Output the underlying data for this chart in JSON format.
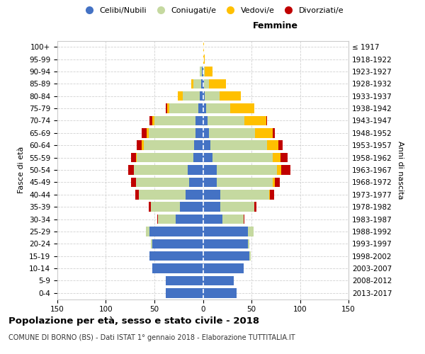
{
  "age_groups": [
    "0-4",
    "5-9",
    "10-14",
    "15-19",
    "20-24",
    "25-29",
    "30-34",
    "35-39",
    "40-44",
    "45-49",
    "50-54",
    "55-59",
    "60-64",
    "65-69",
    "70-74",
    "75-79",
    "80-84",
    "85-89",
    "90-94",
    "95-99",
    "100+"
  ],
  "birth_years": [
    "2013-2017",
    "2008-2012",
    "2003-2007",
    "1998-2002",
    "1993-1997",
    "1988-1992",
    "1983-1987",
    "1978-1982",
    "1973-1977",
    "1968-1972",
    "1963-1967",
    "1958-1962",
    "1953-1957",
    "1948-1952",
    "1943-1947",
    "1938-1942",
    "1933-1937",
    "1928-1932",
    "1923-1927",
    "1918-1922",
    "≤ 1917"
  ],
  "male_celibi": [
    38,
    38,
    52,
    55,
    52,
    55,
    28,
    24,
    18,
    14,
    16,
    10,
    9,
    8,
    8,
    5,
    3,
    2,
    1,
    0,
    0
  ],
  "male_coniugati": [
    0,
    0,
    0,
    0,
    2,
    4,
    18,
    30,
    48,
    55,
    55,
    58,
    52,
    48,
    42,
    30,
    18,
    8,
    2,
    0,
    0
  ],
  "male_vedovi": [
    0,
    0,
    0,
    0,
    0,
    0,
    0,
    0,
    0,
    0,
    0,
    1,
    2,
    2,
    2,
    2,
    5,
    2,
    0,
    0,
    0
  ],
  "male_divorziati": [
    0,
    0,
    0,
    0,
    0,
    0,
    1,
    2,
    4,
    5,
    6,
    5,
    5,
    5,
    3,
    1,
    0,
    0,
    0,
    0,
    0
  ],
  "female_celibi": [
    35,
    32,
    42,
    48,
    46,
    46,
    20,
    18,
    18,
    14,
    14,
    10,
    8,
    6,
    5,
    3,
    2,
    1,
    0,
    0,
    0
  ],
  "female_coniugati": [
    0,
    0,
    0,
    1,
    2,
    6,
    22,
    35,
    50,
    58,
    62,
    62,
    58,
    48,
    38,
    25,
    15,
    5,
    2,
    0,
    0
  ],
  "female_vedovi": [
    0,
    0,
    0,
    0,
    0,
    0,
    0,
    0,
    1,
    2,
    5,
    8,
    12,
    18,
    22,
    25,
    22,
    18,
    8,
    2,
    1
  ],
  "female_divorziati": [
    0,
    0,
    0,
    0,
    0,
    0,
    1,
    2,
    4,
    5,
    9,
    7,
    4,
    2,
    1,
    0,
    0,
    0,
    0,
    0,
    0
  ],
  "colors": {
    "celibi": "#4472c4",
    "coniugati": "#c5d9a0",
    "vedovi": "#ffc000",
    "divorziati": "#c00000"
  },
  "legend_labels": [
    "Celibi/Nubili",
    "Coniugati/e",
    "Vedovi/e",
    "Divorziati/e"
  ],
  "title": "Popolazione per età, sesso e stato civile - 2018",
  "subtitle": "COMUNE DI BORNO (BS) - Dati ISTAT 1° gennaio 2018 - Elaborazione TUTTITALIA.IT",
  "xlabel_right": "Femmine",
  "ylabel": "Fasce di età",
  "ylabel_right": "Anni di nascita",
  "xlim": 150,
  "background_color": "#ffffff",
  "grid_color": "#cccccc"
}
